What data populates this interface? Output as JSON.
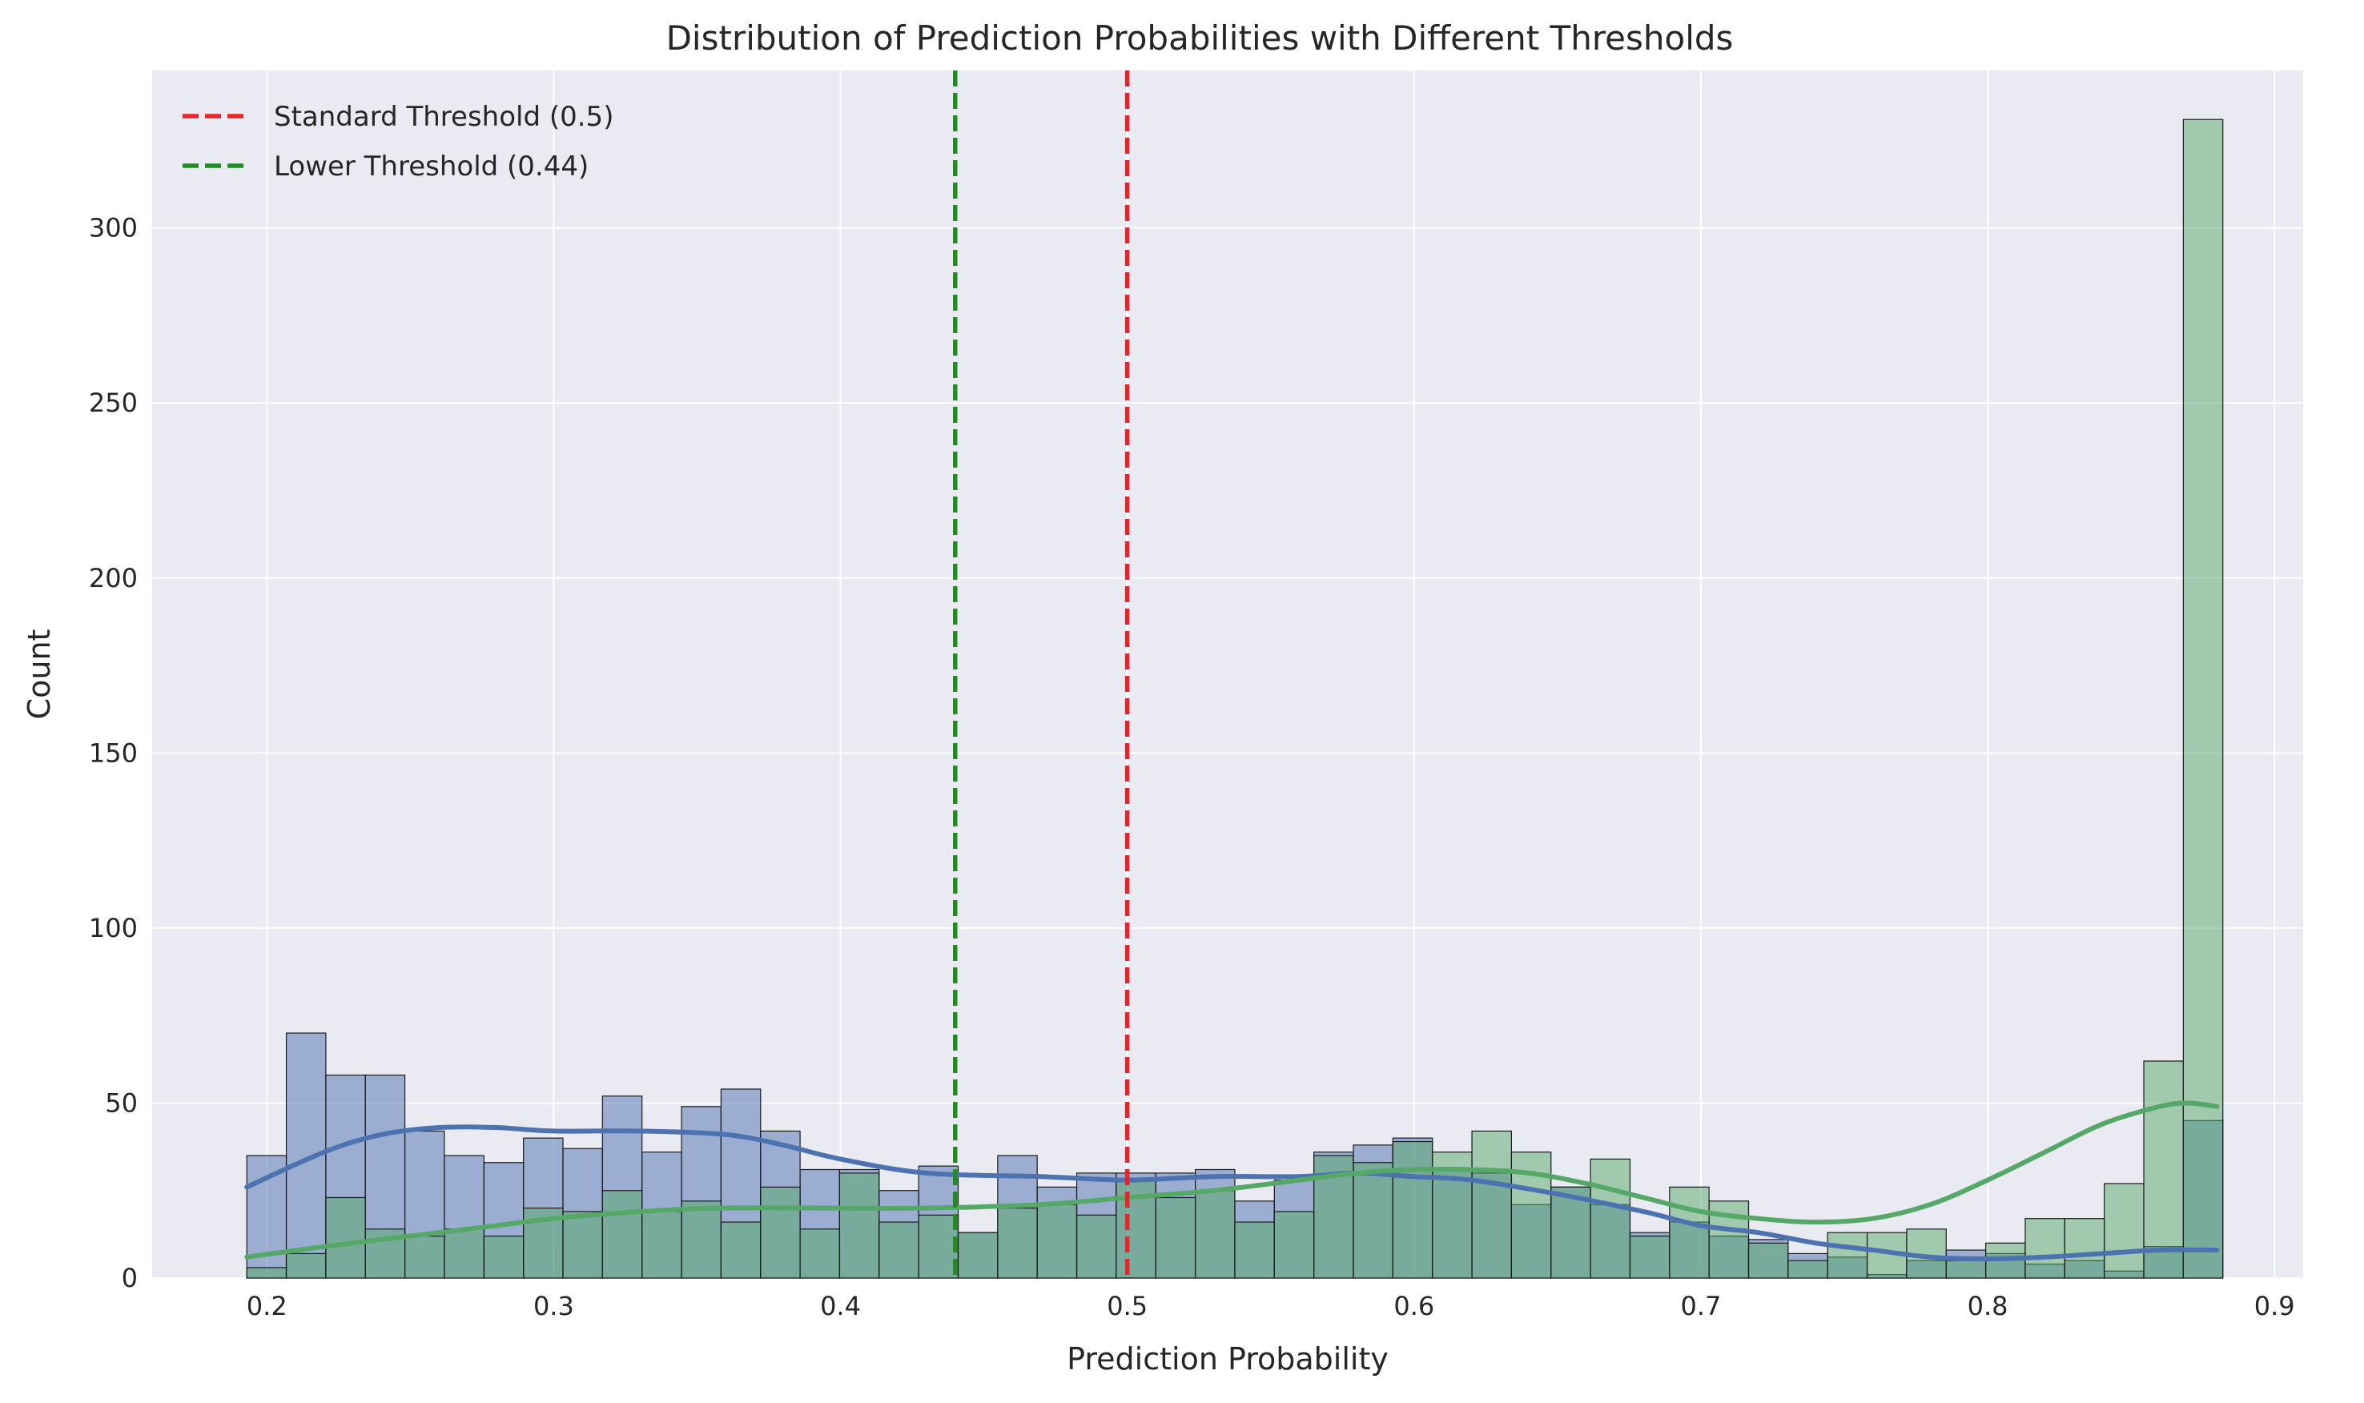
{
  "chart_data": {
    "type": "bar",
    "title": "Distribution of Prediction Probabilities with Different Thresholds",
    "xlabel": "Prediction Probability",
    "ylabel": "Count",
    "xlim": [
      0.16,
      0.91
    ],
    "ylim": [
      0,
      345
    ],
    "xticks": [
      0.2,
      0.3,
      0.4,
      0.5,
      0.6,
      0.7,
      0.8,
      0.9
    ],
    "xtick_labels": [
      "0.2",
      "0.3",
      "0.4",
      "0.5",
      "0.6",
      "0.7",
      "0.8",
      "0.9"
    ],
    "yticks": [
      0,
      50,
      100,
      150,
      200,
      250,
      300
    ],
    "ytick_labels": [
      "0",
      "50",
      "100",
      "150",
      "200",
      "250",
      "300"
    ],
    "grid": true,
    "legend_position": "top-left",
    "bin_start": 0.193,
    "bin_width": 0.01378,
    "series": [
      {
        "color": "#4c72b0",
        "values": [
          35,
          70,
          58,
          58,
          42,
          35,
          33,
          40,
          37,
          52,
          36,
          49,
          54,
          42,
          31,
          31,
          25,
          32,
          13,
          35,
          26,
          30,
          30,
          30,
          31,
          22,
          28,
          36,
          38,
          40,
          31,
          30,
          21,
          26,
          21,
          13,
          16,
          12,
          11,
          7,
          6,
          1,
          5,
          8,
          7,
          4,
          5,
          2,
          9,
          45
        ]
      },
      {
        "color": "#55a868",
        "values": [
          3,
          7,
          23,
          14,
          12,
          14,
          12,
          20,
          19,
          25,
          19,
          22,
          16,
          26,
          14,
          30,
          16,
          18,
          13,
          20,
          21,
          18,
          28,
          23,
          25,
          16,
          19,
          35,
          33,
          39,
          36,
          42,
          36,
          26,
          34,
          12,
          26,
          22,
          10,
          5,
          13,
          13,
          14,
          5,
          10,
          17,
          17,
          27,
          62,
          331
        ]
      }
    ],
    "kde": [
      {
        "color": "#4c72b0",
        "x": [
          0.193,
          0.22,
          0.24,
          0.26,
          0.28,
          0.3,
          0.33,
          0.36,
          0.38,
          0.4,
          0.43,
          0.47,
          0.5,
          0.53,
          0.56,
          0.58,
          0.6,
          0.62,
          0.65,
          0.68,
          0.7,
          0.72,
          0.74,
          0.76,
          0.78,
          0.8,
          0.82,
          0.84,
          0.86,
          0.88
        ],
        "y": [
          26,
          36,
          41,
          43,
          43,
          42,
          42,
          41,
          38,
          34,
          30,
          29,
          28,
          29,
          29,
          30,
          29,
          28,
          24,
          19,
          15,
          13,
          10,
          8,
          6,
          5.5,
          6,
          7,
          8,
          8
        ]
      },
      {
        "color": "#55a868",
        "x": [
          0.193,
          0.22,
          0.25,
          0.28,
          0.3,
          0.33,
          0.36,
          0.4,
          0.43,
          0.47,
          0.5,
          0.53,
          0.56,
          0.58,
          0.6,
          0.62,
          0.64,
          0.66,
          0.68,
          0.7,
          0.72,
          0.74,
          0.76,
          0.78,
          0.8,
          0.82,
          0.84,
          0.86,
          0.87,
          0.88
        ],
        "y": [
          6,
          9,
          12,
          15,
          17,
          19,
          20,
          20,
          20,
          21,
          23,
          25,
          28,
          30,
          31,
          31,
          30,
          27,
          23,
          19,
          17,
          16,
          17,
          21,
          28,
          36,
          44,
          49,
          50,
          49
        ]
      }
    ],
    "thresholds": [
      {
        "x": 0.5,
        "label": "Standard Threshold (0.5)",
        "color": "#e8242b"
      },
      {
        "x": 0.44,
        "label": "Lower Threshold (0.44)",
        "color": "#228b22"
      }
    ]
  }
}
